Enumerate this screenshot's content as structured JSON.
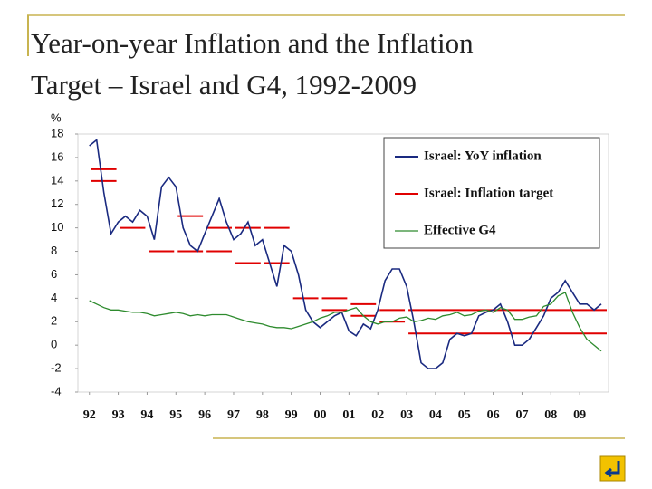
{
  "title": [
    "Year-on-year Inflation and the Inflation",
    "Target – Israel and G4, 1992-2009"
  ],
  "chart_data": {
    "type": "line",
    "y_unit": "%",
    "x": [
      1992,
      1992.25,
      1992.5,
      1992.75,
      1993,
      1993.25,
      1993.5,
      1993.75,
      1994,
      1994.25,
      1994.5,
      1994.75,
      1995,
      1995.25,
      1995.5,
      1995.75,
      1996,
      1996.25,
      1996.5,
      1996.75,
      1997,
      1997.25,
      1997.5,
      1997.75,
      1998,
      1998.25,
      1998.5,
      1998.75,
      1999,
      1999.25,
      1999.5,
      1999.75,
      2000,
      2000.25,
      2000.5,
      2000.75,
      2001,
      2001.25,
      2001.5,
      2001.75,
      2002,
      2002.25,
      2002.5,
      2002.75,
      2003,
      2003.25,
      2003.5,
      2003.75,
      2004,
      2004.25,
      2004.5,
      2004.75,
      2005,
      2005.25,
      2005.5,
      2005.75,
      2006,
      2006.25,
      2006.5,
      2006.75,
      2007,
      2007.25,
      2007.5,
      2007.75,
      2008,
      2008.25,
      2008.5,
      2008.75,
      2009,
      2009.25,
      2009.5,
      2009.75
    ],
    "series": [
      {
        "name": "Israel: YoY inflation",
        "color": "#1a2a80",
        "values": [
          17,
          17.5,
          13,
          9.5,
          10.5,
          11,
          10.5,
          11.5,
          11,
          9,
          13.5,
          14.3,
          13.5,
          10,
          8.5,
          8,
          9.5,
          11,
          12.5,
          10.5,
          9,
          9.5,
          10.5,
          8.5,
          9,
          7,
          5,
          8.5,
          8,
          6,
          3,
          2,
          1.5,
          2,
          2.5,
          2.8,
          1.2,
          0.8,
          1.8,
          1.4,
          3,
          5.5,
          6.5,
          6.5,
          5,
          2,
          -1.5,
          -2,
          -2,
          -1.5,
          0.5,
          1,
          0.8,
          1,
          2.5,
          2.8,
          3,
          3.5,
          2,
          0,
          0,
          0.5,
          1.5,
          2.5,
          4,
          4.5,
          5.5,
          4.5,
          3.5,
          3.5,
          3,
          3.5
        ]
      },
      {
        "name": "Effective G4",
        "color": "#2e8b2e",
        "values": [
          3.8,
          3.5,
          3.2,
          3,
          3,
          2.9,
          2.8,
          2.8,
          2.7,
          2.5,
          2.6,
          2.7,
          2.8,
          2.7,
          2.5,
          2.6,
          2.5,
          2.6,
          2.6,
          2.6,
          2.4,
          2.2,
          2,
          1.9,
          1.8,
          1.6,
          1.5,
          1.5,
          1.4,
          1.6,
          1.8,
          2,
          2.3,
          2.5,
          2.8,
          2.8,
          3,
          3.2,
          2.5,
          2,
          1.8,
          2,
          2,
          2.3,
          2.4,
          2,
          2.1,
          2.3,
          2.2,
          2.5,
          2.6,
          2.8,
          2.5,
          2.6,
          2.9,
          3,
          2.8,
          3.2,
          3,
          2.2,
          2.2,
          2.4,
          2.5,
          3.3,
          3.5,
          4.2,
          4.5,
          2.8,
          1.5,
          0.5,
          0,
          -0.5
        ]
      }
    ],
    "target": {
      "name": "Israel: Inflation target",
      "color": "#e00000",
      "periods": [
        {
          "start": 1992,
          "end": 1993,
          "low": 14,
          "high": 15
        },
        {
          "start": 1993,
          "end": 1994,
          "low": 10,
          "high": 10
        },
        {
          "start": 1994,
          "end": 1995,
          "low": 8,
          "high": 8
        },
        {
          "start": 1995,
          "end": 1996,
          "low": 8,
          "high": 11
        },
        {
          "start": 1996,
          "end": 1997,
          "low": 8,
          "high": 10
        },
        {
          "start": 1997,
          "end": 1998,
          "low": 7,
          "high": 10
        },
        {
          "start": 1998,
          "end": 1999,
          "low": 7,
          "high": 10
        },
        {
          "start": 1999,
          "end": 2000,
          "low": 4,
          "high": 4
        },
        {
          "start": 2000,
          "end": 2001,
          "low": 3,
          "high": 4
        },
        {
          "start": 2001,
          "end": 2002,
          "low": 2.5,
          "high": 3.5
        },
        {
          "start": 2002,
          "end": 2003,
          "low": 2,
          "high": 3
        },
        {
          "start": 2003,
          "end": 2010,
          "low": 1,
          "high": 3
        }
      ]
    },
    "xlim": [
      1991.6,
      2010
    ],
    "xticks": [
      {
        "value": 1992,
        "label": "92"
      },
      {
        "value": 1993,
        "label": "93"
      },
      {
        "value": 1994,
        "label": "94"
      },
      {
        "value": 1995,
        "label": "95"
      },
      {
        "value": 1996,
        "label": "96"
      },
      {
        "value": 1997,
        "label": "97"
      },
      {
        "value": 1998,
        "label": "98"
      },
      {
        "value": 1999,
        "label": "99"
      },
      {
        "value": 2000,
        "label": "00"
      },
      {
        "value": 2001,
        "label": "01"
      },
      {
        "value": 2002,
        "label": "02"
      },
      {
        "value": 2003,
        "label": "03"
      },
      {
        "value": 2004,
        "label": "04"
      },
      {
        "value": 2005,
        "label": "05"
      },
      {
        "value": 2006,
        "label": "06"
      },
      {
        "value": 2007,
        "label": "07"
      },
      {
        "value": 2008,
        "label": "08"
      },
      {
        "value": 2009,
        "label": "09"
      }
    ],
    "ylim": [
      -4,
      18
    ],
    "yticks": [
      -4,
      -2,
      0,
      2,
      4,
      6,
      8,
      10,
      12,
      14,
      16,
      18
    ],
    "legend": "top-right"
  }
}
